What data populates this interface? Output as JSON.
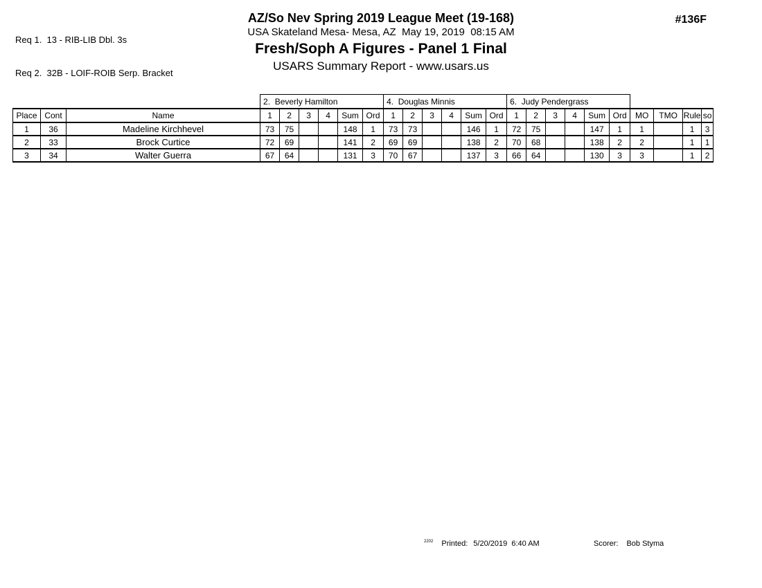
{
  "header": {
    "req1": "Req 1.  13 - RIB-LIB Dbl. 3s",
    "req2": "Req 2.  32B - LOIF-ROIB Serp. Bracket",
    "event_number": "#136F",
    "meet_title": "AZ/So Nev Spring 2019 League Meet (19-168)",
    "venue_line": "USA Skateland Mesa- Mesa, AZ  May 19, 2019  08:15 AM",
    "event_title": "Fresh/Soph A Figures - Panel 1 Final",
    "report_line": "USARS Summary Report - www.usars.us"
  },
  "table": {
    "judges": [
      "2.  Beverly Hamilton",
      "4.  Douglas Minnis",
      "6.  Judy Pendergrass"
    ],
    "columns": {
      "place": "Place",
      "cont": "Cont",
      "name": "Name",
      "trial_headers": [
        "1",
        "2",
        "3",
        "4"
      ],
      "sum": "Sum",
      "ord": "Ord",
      "mo": "MO",
      "tmo": "TMO",
      "rule": "Rule",
      "so": "so"
    },
    "rows": [
      {
        "place": "1",
        "cont": "36",
        "name": "Madeline Kirchhevel",
        "judges": [
          {
            "scores": [
              "73",
              "75",
              "",
              ""
            ],
            "sum": "148",
            "ord": "1"
          },
          {
            "scores": [
              "73",
              "73",
              "",
              ""
            ],
            "sum": "146",
            "ord": "1"
          },
          {
            "scores": [
              "72",
              "75",
              "",
              ""
            ],
            "sum": "147",
            "ord": "1"
          }
        ],
        "mo": "1",
        "tmo": "",
        "rule": "1",
        "so": "3"
      },
      {
        "place": "2",
        "cont": "33",
        "name": "Brock Curtice",
        "judges": [
          {
            "scores": [
              "72",
              "69",
              "",
              ""
            ],
            "sum": "141",
            "ord": "2"
          },
          {
            "scores": [
              "69",
              "69",
              "",
              ""
            ],
            "sum": "138",
            "ord": "2"
          },
          {
            "scores": [
              "70",
              "68",
              "",
              ""
            ],
            "sum": "138",
            "ord": "2"
          }
        ],
        "mo": "2",
        "tmo": "",
        "rule": "1",
        "so": "1"
      },
      {
        "place": "3",
        "cont": "34",
        "name": "Walter Guerra",
        "judges": [
          {
            "scores": [
              "67",
              "64",
              "",
              ""
            ],
            "sum": "131",
            "ord": "3"
          },
          {
            "scores": [
              "70",
              "67",
              "",
              ""
            ],
            "sum": "137",
            "ord": "3"
          },
          {
            "scores": [
              "66",
              "64",
              "",
              ""
            ],
            "sum": "130",
            "ord": "3"
          }
        ],
        "mo": "3",
        "tmo": "",
        "rule": "1",
        "so": "2"
      }
    ]
  },
  "footer": {
    "version": "2202",
    "printed_label": "Printed:",
    "printed_value": "5/20/2019  6:40 AM",
    "scorer_label": "Scorer:",
    "scorer_value": "Bob Styma"
  }
}
